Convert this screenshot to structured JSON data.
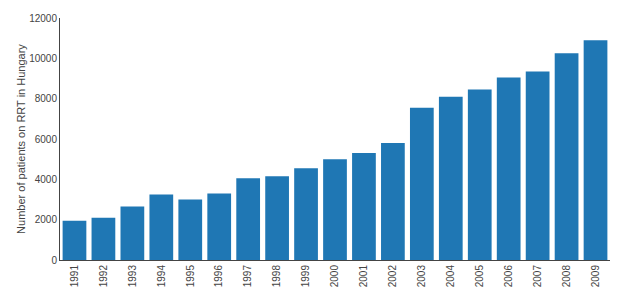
{
  "chart_data": {
    "type": "bar",
    "categories": [
      "1991",
      "1992",
      "1993",
      "1994",
      "1995",
      "1996",
      "1997",
      "1998",
      "1999",
      "2000",
      "2001",
      "2002",
      "2003",
      "2004",
      "2005",
      "2006",
      "2007",
      "2008",
      "2009"
    ],
    "values": [
      1950,
      2100,
      2650,
      3250,
      3000,
      3300,
      4050,
      4150,
      4550,
      5000,
      5300,
      5800,
      7550,
      8100,
      8450,
      9050,
      9350,
      10250,
      10900
    ],
    "ylabel": "Number of patients on RRT in Hungary",
    "ylim": [
      0,
      12000
    ],
    "yticks": [
      0,
      2000,
      4000,
      6000,
      8000,
      10000,
      12000
    ],
    "grid": false
  }
}
